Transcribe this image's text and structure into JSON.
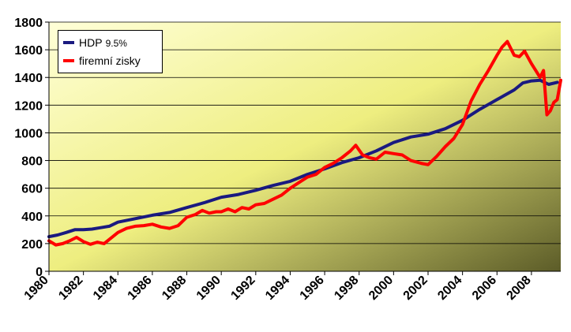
{
  "chart_data": {
    "type": "line",
    "title": "",
    "xlabel": "",
    "ylabel": "",
    "xlim": [
      1980,
      2009.7
    ],
    "ylim": [
      0,
      1800
    ],
    "y_ticks": [
      0,
      200,
      400,
      600,
      800,
      1000,
      1200,
      1400,
      1600,
      1800
    ],
    "x_ticks": [
      1980,
      1982,
      1984,
      1986,
      1988,
      1990,
      1992,
      1994,
      1996,
      1998,
      2000,
      2002,
      2004,
      2006,
      2008
    ],
    "grid": "horizontal",
    "legend_position": "top-left",
    "series": [
      {
        "name": "HDP",
        "legend_suffix": "9.5%",
        "color": "#1a1a80",
        "x": [
          1980,
          1980.5,
          1981,
          1981.5,
          1982,
          1982.5,
          1983,
          1983.5,
          1984,
          1985,
          1986,
          1987,
          1988,
          1989,
          1990,
          1991,
          1992,
          1993,
          1994,
          1995,
          1996,
          1997,
          1998,
          1999,
          2000,
          2001,
          2002,
          2003,
          2004,
          2005,
          2006,
          2007,
          2007.5,
          2008,
          2008.5,
          2009,
          2009.5
        ],
        "y": [
          250,
          262,
          280,
          300,
          300,
          305,
          315,
          325,
          355,
          380,
          405,
          425,
          460,
          495,
          535,
          555,
          585,
          620,
          650,
          700,
          740,
          785,
          820,
          870,
          930,
          970,
          990,
          1030,
          1090,
          1170,
          1240,
          1310,
          1360,
          1375,
          1380,
          1350,
          1365
        ]
      },
      {
        "name": "firemní zisky",
        "color": "#ff0000",
        "x": [
          1980,
          1980.4,
          1980.8,
          1981.2,
          1981.6,
          1982,
          1982.4,
          1982.8,
          1983.2,
          1983.6,
          1984,
          1984.5,
          1985,
          1985.5,
          1986,
          1986.5,
          1987,
          1987.5,
          1988,
          1988.5,
          1988.9,
          1989.3,
          1989.7,
          1990,
          1990.4,
          1990.8,
          1991.2,
          1991.6,
          1992,
          1992.5,
          1993,
          1993.5,
          1994,
          1994.5,
          1995,
          1995.5,
          1996,
          1996.5,
          1997,
          1997.5,
          1997.8,
          1998.2,
          1998.6,
          1999,
          1999.5,
          2000,
          2000.5,
          2001,
          2001.3,
          2001.6,
          2002,
          2002.5,
          2003,
          2003.5,
          2004,
          2004.5,
          2005,
          2005.5,
          2006,
          2006.3,
          2006.6,
          2007,
          2007.3,
          2007.6,
          2008,
          2008.3,
          2008.5,
          2008.7,
          2008.9,
          2009.1,
          2009.3,
          2009.5,
          2009.7
        ],
        "y": [
          220,
          190,
          200,
          220,
          245,
          215,
          195,
          210,
          200,
          240,
          280,
          310,
          325,
          330,
          340,
          320,
          310,
          330,
          390,
          410,
          440,
          420,
          430,
          430,
          450,
          430,
          460,
          450,
          480,
          490,
          520,
          550,
          600,
          640,
          680,
          700,
          750,
          780,
          820,
          870,
          910,
          840,
          820,
          810,
          860,
          850,
          840,
          800,
          790,
          780,
          770,
          830,
          900,
          960,
          1060,
          1230,
          1350,
          1450,
          1560,
          1620,
          1660,
          1560,
          1550,
          1590,
          1500,
          1440,
          1400,
          1450,
          1130,
          1160,
          1220,
          1240,
          1380
        ]
      }
    ]
  }
}
